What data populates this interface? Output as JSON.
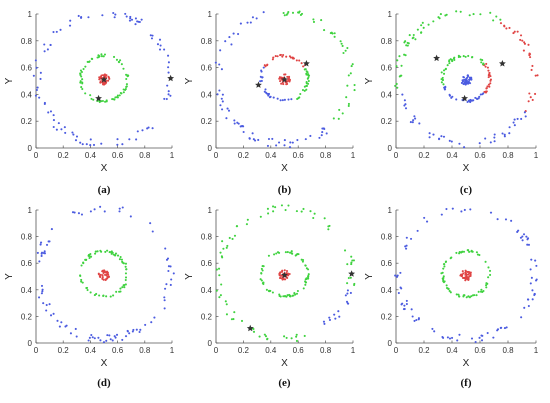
{
  "colors": {
    "blue": "#4b5be0",
    "green": "#3fd23f",
    "red": "#e04444",
    "star": "#333333",
    "axis": "#555555"
  },
  "chart_data": [
    {
      "type": "scatter",
      "caption": "(a)",
      "xlabel": "X",
      "ylabel": "Y",
      "xlim": [
        0,
        1
      ],
      "ylim": [
        0,
        1
      ],
      "xticks": [
        "0",
        "0.2",
        "0.4",
        "0.6",
        "0.8",
        "1"
      ],
      "yticks": [
        "0",
        "0.2",
        "0.4",
        "0.6",
        "0.8",
        "1"
      ],
      "grid": false,
      "series": [
        {
          "color": "blue",
          "shape": "ring",
          "center": [
            0.5,
            0.52
          ],
          "radius": 0.49,
          "count": 90
        },
        {
          "color": "green",
          "shape": "ring",
          "center": [
            0.5,
            0.52
          ],
          "radius": 0.17,
          "count": 70
        },
        {
          "color": "red",
          "shape": "blob",
          "center": [
            0.5,
            0.51
          ],
          "radius": 0.04,
          "count": 40
        }
      ],
      "stars": [
        [
          0.5,
          0.51
        ],
        [
          0.46,
          0.37
        ],
        [
          0.99,
          0.52
        ]
      ]
    },
    {
      "type": "scatter",
      "caption": "(b)",
      "xlabel": "X",
      "ylabel": "Y",
      "xlim": [
        0,
        1
      ],
      "ylim": [
        0,
        1
      ],
      "xticks": [
        "0",
        "0.2",
        "0.4",
        "0.6",
        "0.8",
        "1"
      ],
      "yticks": [
        "0",
        "0.2",
        "0.4",
        "0.6",
        "0.8",
        "1"
      ],
      "grid": false,
      "series": [
        {
          "color": "blue",
          "shape": "ring",
          "center": [
            0.5,
            0.52
          ],
          "radius": 0.49,
          "count": 60,
          "angles": [
            95,
            320
          ]
        },
        {
          "color": "green",
          "shape": "ring",
          "center": [
            0.5,
            0.52
          ],
          "radius": 0.49,
          "count": 40,
          "angles": [
            -40,
            95
          ]
        },
        {
          "color": "red",
          "shape": "ring",
          "center": [
            0.5,
            0.52
          ],
          "radius": 0.17,
          "count": 25,
          "angles": [
            30,
            150
          ]
        },
        {
          "color": "green",
          "shape": "ring",
          "center": [
            0.5,
            0.52
          ],
          "radius": 0.17,
          "count": 25,
          "angles": [
            -60,
            30
          ]
        },
        {
          "color": "blue",
          "shape": "ring",
          "center": [
            0.5,
            0.52
          ],
          "radius": 0.17,
          "count": 25,
          "angles": [
            150,
            300
          ]
        },
        {
          "color": "red",
          "shape": "blob",
          "center": [
            0.5,
            0.51
          ],
          "radius": 0.04,
          "count": 40
        }
      ],
      "stars": [
        [
          0.5,
          0.51
        ],
        [
          0.66,
          0.63
        ],
        [
          0.31,
          0.47
        ]
      ]
    },
    {
      "type": "scatter",
      "caption": "(c)",
      "xlabel": "X",
      "ylabel": "Y",
      "xlim": [
        0,
        1
      ],
      "ylim": [
        0,
        1
      ],
      "xticks": [
        "0",
        "0.2",
        "0.4",
        "0.6",
        "0.8",
        "1"
      ],
      "yticks": [
        "0",
        "0.2",
        "0.4",
        "0.6",
        "0.8",
        "1"
      ],
      "grid": false,
      "series": [
        {
          "color": "red",
          "shape": "ring",
          "center": [
            0.5,
            0.52
          ],
          "radius": 0.49,
          "count": 30,
          "angles": [
            -30,
            60
          ]
        },
        {
          "color": "green",
          "shape": "ring",
          "center": [
            0.5,
            0.52
          ],
          "radius": 0.49,
          "count": 45,
          "angles": [
            60,
            190
          ]
        },
        {
          "color": "blue",
          "shape": "ring",
          "center": [
            0.5,
            0.52
          ],
          "radius": 0.49,
          "count": 40,
          "angles": [
            190,
            330
          ]
        },
        {
          "color": "red",
          "shape": "ring",
          "center": [
            0.5,
            0.52
          ],
          "radius": 0.17,
          "count": 25,
          "angles": [
            -40,
            40
          ]
        },
        {
          "color": "green",
          "shape": "ring",
          "center": [
            0.5,
            0.52
          ],
          "radius": 0.17,
          "count": 35,
          "angles": [
            40,
            200
          ]
        },
        {
          "color": "blue",
          "shape": "ring",
          "center": [
            0.5,
            0.52
          ],
          "radius": 0.17,
          "count": 30,
          "angles": [
            200,
            320
          ]
        },
        {
          "color": "blue",
          "shape": "blob",
          "center": [
            0.5,
            0.51
          ],
          "radius": 0.04,
          "count": 40
        }
      ],
      "stars": [
        [
          0.29,
          0.67
        ],
        [
          0.76,
          0.63
        ],
        [
          0.49,
          0.37
        ]
      ]
    },
    {
      "type": "scatter",
      "caption": "(d)",
      "xlabel": "X",
      "ylabel": "Y",
      "xlim": [
        0,
        1
      ],
      "ylim": [
        0,
        1
      ],
      "xticks": [
        "0",
        "0.2",
        "0.4",
        "0.6",
        "0.8",
        "1"
      ],
      "yticks": [
        "0",
        "0.2",
        "0.4",
        "0.6",
        "0.8",
        "1"
      ],
      "grid": false,
      "series": [
        {
          "color": "blue",
          "shape": "ring",
          "center": [
            0.5,
            0.52
          ],
          "radius": 0.49,
          "count": 90
        },
        {
          "color": "green",
          "shape": "ring",
          "center": [
            0.5,
            0.52
          ],
          "radius": 0.17,
          "count": 70
        },
        {
          "color": "red",
          "shape": "blob",
          "center": [
            0.5,
            0.51
          ],
          "radius": 0.04,
          "count": 40
        }
      ],
      "stars": []
    },
    {
      "type": "scatter",
      "caption": "(e)",
      "xlabel": "X",
      "ylabel": "Y",
      "xlim": [
        0,
        1
      ],
      "ylim": [
        0,
        1
      ],
      "xticks": [
        "0",
        "0.2",
        "0.4",
        "0.6",
        "0.8",
        "1"
      ],
      "yticks": [
        "0",
        "0.2",
        "0.4",
        "0.6",
        "0.8",
        "1"
      ],
      "grid": false,
      "series": [
        {
          "color": "green",
          "shape": "ring",
          "center": [
            0.5,
            0.52
          ],
          "radius": 0.49,
          "count": 75,
          "angles": [
            -15,
            300
          ]
        },
        {
          "color": "blue",
          "shape": "ring",
          "center": [
            0.5,
            0.52
          ],
          "radius": 0.49,
          "count": 15,
          "angles": [
            300,
            345
          ]
        },
        {
          "color": "green",
          "shape": "ring",
          "center": [
            0.5,
            0.52
          ],
          "radius": 0.17,
          "count": 70
        },
        {
          "color": "red",
          "shape": "blob",
          "center": [
            0.5,
            0.51
          ],
          "radius": 0.04,
          "count": 40
        }
      ],
      "stars": [
        [
          0.5,
          0.51
        ],
        [
          0.99,
          0.52
        ],
        [
          0.25,
          0.11
        ]
      ]
    },
    {
      "type": "scatter",
      "caption": "(f)",
      "xlabel": "X",
      "ylabel": "Y",
      "xlim": [
        0,
        1
      ],
      "ylim": [
        0,
        1
      ],
      "xticks": [
        "0",
        "0.2",
        "0.4",
        "0.6",
        "0.8",
        "1"
      ],
      "yticks": [
        "0",
        "0.2",
        "0.4",
        "0.6",
        "0.8",
        "1"
      ],
      "grid": false,
      "series": [
        {
          "color": "blue",
          "shape": "ring",
          "center": [
            0.5,
            0.52
          ],
          "radius": 0.49,
          "count": 90
        },
        {
          "color": "green",
          "shape": "ring",
          "center": [
            0.5,
            0.52
          ],
          "radius": 0.17,
          "count": 70
        },
        {
          "color": "red",
          "shape": "blob",
          "center": [
            0.5,
            0.51
          ],
          "radius": 0.04,
          "count": 40
        }
      ],
      "stars": []
    }
  ]
}
